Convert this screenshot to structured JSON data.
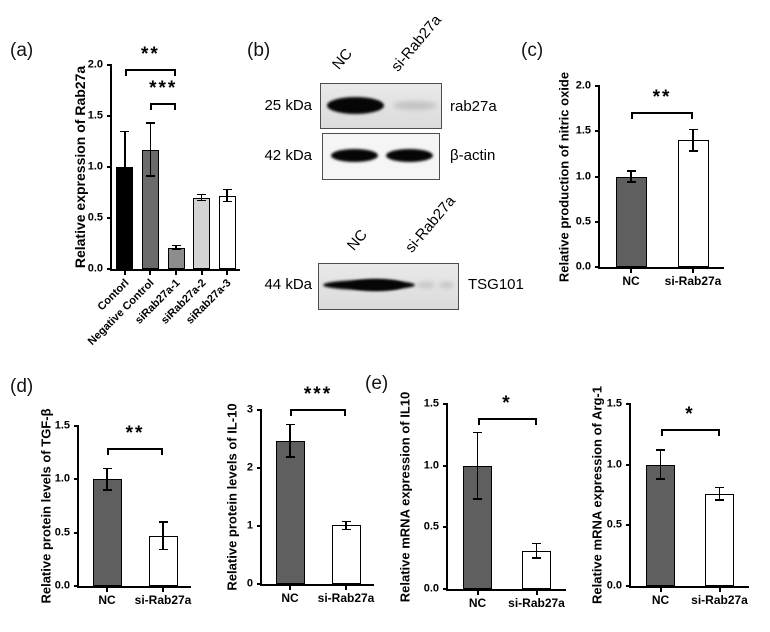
{
  "panels": {
    "a": "(a)",
    "b": "(b)",
    "c": "(c)",
    "d": "(d)",
    "e": "(e)"
  },
  "colors": {
    "background": "#ffffff",
    "axis": "#000000",
    "bar_black": "#000000",
    "bar_dark_gray": "#5f5f5f",
    "bar_gray": "#6b6b6b",
    "bar_mid_gray": "#8d8d8d",
    "bar_light_gray": "#d4d4d4",
    "bar_white": "#ffffff"
  },
  "chart_data": [
    {
      "id": "rab27a-expression",
      "type": "bar",
      "title": "",
      "ylabel": "Relative expression of Rab27a",
      "xlabel": "",
      "ylim": [
        0,
        2.0
      ],
      "yticks": [
        "0.0",
        "0.5",
        "1.0",
        "1.5",
        "2.0"
      ],
      "grid": false,
      "categories": [
        "Contorl",
        "Negative Control",
        "siRab27a-1",
        "siRab27a-2",
        "siRab27a-3"
      ],
      "values": [
        1.0,
        1.17,
        0.21,
        0.7,
        0.72
      ],
      "errors": [
        0.35,
        0.26,
        0.02,
        0.03,
        0.06
      ],
      "bar_colors": [
        "#000000",
        "#6b6b6b",
        "#8d8d8d",
        "#d4d4d4",
        "#ffffff"
      ],
      "significance": [
        {
          "from": 0,
          "to": 2,
          "stars": "**",
          "y": 1.96
        },
        {
          "from": 1,
          "to": 2,
          "stars": "***",
          "y": 1.63
        }
      ],
      "xtick_rotation": 45
    },
    {
      "id": "nitric-oxide",
      "type": "bar",
      "title": "",
      "ylabel": "Relative production of nitric oxide",
      "xlabel": "",
      "ylim": [
        0,
        2.0
      ],
      "yticks": [
        "0.0",
        "0.5",
        "1.0",
        "1.5",
        "2.0"
      ],
      "grid": false,
      "categories": [
        "NC",
        "si-Rab27a"
      ],
      "values": [
        1.0,
        1.4
      ],
      "errors": [
        0.06,
        0.12
      ],
      "bar_colors": [
        "#5f5f5f",
        "#ffffff"
      ],
      "significance": [
        {
          "from": 0,
          "to": 1,
          "stars": "**",
          "y": 1.71
        }
      ],
      "xtick_rotation": 0
    },
    {
      "id": "tgf-beta-protein",
      "type": "bar",
      "title": "",
      "ylabel": "Relative protein levels of TGF-β",
      "xlabel": "",
      "ylim": [
        0,
        1.5
      ],
      "yticks": [
        "0.0",
        "0.5",
        "1.0",
        "1.5"
      ],
      "grid": false,
      "categories": [
        "NC",
        "si-Rab27a"
      ],
      "values": [
        1.0,
        0.47
      ],
      "errors": [
        0.1,
        0.13
      ],
      "bar_colors": [
        "#5f5f5f",
        "#ffffff"
      ],
      "significance": [
        {
          "from": 0,
          "to": 1,
          "stars": "**",
          "y": 1.29
        }
      ],
      "xtick_rotation": 0
    },
    {
      "id": "il10-protein",
      "type": "bar",
      "title": "",
      "ylabel": "Relative protein levels of IL-10",
      "xlabel": "",
      "ylim": [
        0,
        3
      ],
      "yticks": [
        "0",
        "1",
        "2",
        "3"
      ],
      "grid": false,
      "categories": [
        "NC",
        "si-Rab27a"
      ],
      "values": [
        2.47,
        1.01
      ],
      "errors": [
        0.28,
        0.07
      ],
      "bar_colors": [
        "#5f5f5f",
        "#ffffff"
      ],
      "significance": [
        {
          "from": 0,
          "to": 1,
          "stars": "***",
          "y": 3.02
        }
      ],
      "xtick_rotation": 0
    },
    {
      "id": "il10-mrna",
      "type": "bar",
      "title": "",
      "ylabel": "Relative mRNA expression of IL10",
      "xlabel": "",
      "ylim": [
        0,
        1.5
      ],
      "yticks": [
        "0.0",
        "0.5",
        "1.0",
        "1.5"
      ],
      "grid": false,
      "categories": [
        "NC",
        "si-Rab27a"
      ],
      "values": [
        1.0,
        0.31
      ],
      "errors": [
        0.27,
        0.06
      ],
      "bar_colors": [
        "#5f5f5f",
        "#ffffff"
      ],
      "significance": [
        {
          "from": 0,
          "to": 1,
          "stars": "*",
          "y": 1.39
        }
      ],
      "xtick_rotation": 0
    },
    {
      "id": "arg1-mrna",
      "type": "bar",
      "title": "",
      "ylabel": "Relative mRNA expression of Arg-1",
      "xlabel": "",
      "ylim": [
        0,
        1.5
      ],
      "yticks": [
        "0.0",
        "0.5",
        "1.0",
        "1.5"
      ],
      "grid": false,
      "categories": [
        "NC",
        "si-Rab27a"
      ],
      "values": [
        1.0,
        0.76
      ],
      "errors": [
        0.12,
        0.05
      ],
      "bar_colors": [
        "#5f5f5f",
        "#ffffff"
      ],
      "significance": [
        {
          "from": 0,
          "to": 1,
          "stars": "*",
          "y": 1.29
        }
      ],
      "xtick_rotation": 0
    }
  ],
  "western_blot": {
    "lane_labels": [
      "NC",
      "si-Rab27a"
    ],
    "top_rows": [
      {
        "weight": "25 kDa",
        "protein": "rab27a",
        "bands": [
          "strong",
          "faint"
        ]
      },
      {
        "weight": "42 kDa",
        "protein": "β-actin",
        "bands": [
          "strong",
          "strong"
        ]
      }
    ],
    "bottom_rows": [
      {
        "weight": "44 kDa",
        "protein": "TSG101",
        "bands": [
          "strong-wide",
          "faint"
        ]
      }
    ]
  }
}
